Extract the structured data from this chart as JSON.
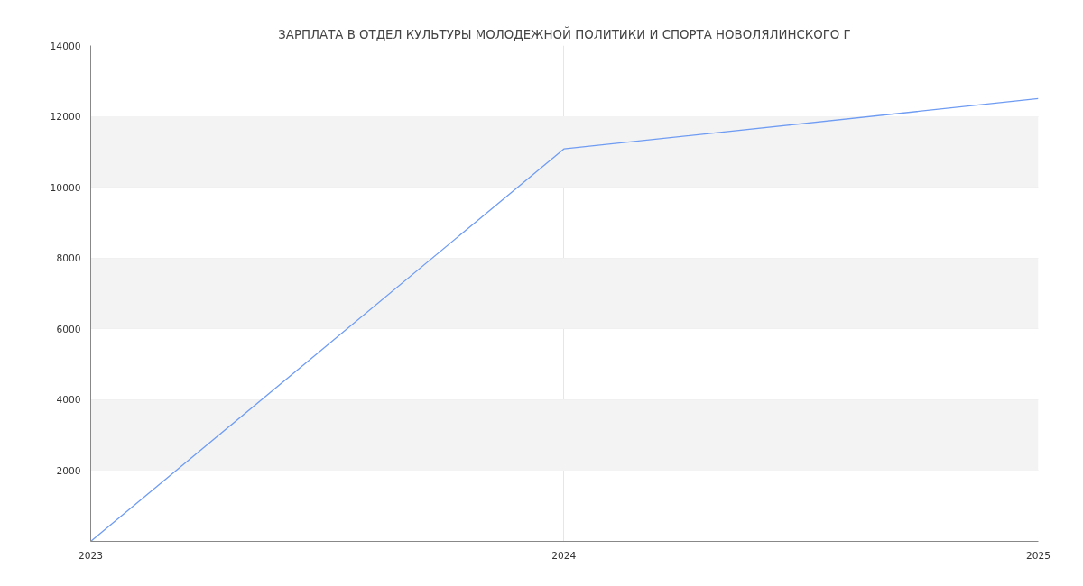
{
  "chart_data": {
    "type": "line",
    "title": "ЗАРПЛАТА В ОТДЕЛ КУЛЬТУРЫ МОЛОДЕЖНОЙ ПОЛИТИКИ И СПОРТА НОВОЛЯЛИНСКОГО Г",
    "x": [
      "2023",
      "2024",
      "2025"
    ],
    "series": [
      {
        "color": "#6f9cf3",
        "values": [
          0,
          11080,
          12500
        ]
      }
    ],
    "xlim": [
      "2023",
      "2025"
    ],
    "xticks": [
      "2023",
      "2024",
      "2025"
    ],
    "ylim": [
      0,
      14000
    ],
    "yticks": [
      2000,
      4000,
      6000,
      8000,
      10000,
      12000,
      14000
    ],
    "bands": [
      {
        "axis": "y",
        "from": 2000,
        "to": 4000,
        "color": "#f3f3f3"
      },
      {
        "axis": "y",
        "from": 6000,
        "to": 8000,
        "color": "#f3f3f3"
      },
      {
        "axis": "y",
        "from": 10000,
        "to": 12000,
        "color": "#f3f3f3"
      }
    ],
    "grid": true,
    "marker": "none",
    "line_style": "solid"
  }
}
